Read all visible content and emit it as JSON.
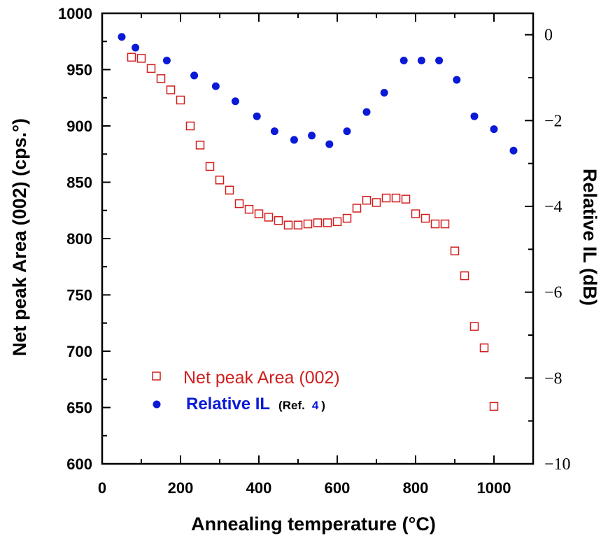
{
  "chart_data": {
    "type": "scatter",
    "xlabel": "Annealing temperature (°C)",
    "ylabel_left": "Net peak Area (002) (cps.°)",
    "ylabel_right": "Relative IL (dB)",
    "xlim": [
      0,
      1100
    ],
    "ylim_left": [
      600,
      1000
    ],
    "ylim_right": [
      -10,
      0.5
    ],
    "x_ticks": [
      "0",
      "200",
      "400",
      "600",
      "800",
      "1000"
    ],
    "y_left_ticks": [
      "600",
      "650",
      "700",
      "750",
      "800",
      "850",
      "900",
      "950",
      "1000"
    ],
    "y_right_ticks": [
      "−10",
      "−8",
      "−6",
      "−4",
      "−2",
      "0"
    ],
    "series": [
      {
        "name": "Net peak Area (002)",
        "axis": "left",
        "marker": "open-square",
        "color": "#d11f1f",
        "x": [
          75,
          100,
          125,
          150,
          175,
          200,
          225,
          250,
          275,
          300,
          325,
          350,
          375,
          400,
          425,
          450,
          475,
          500,
          525,
          550,
          575,
          600,
          625,
          650,
          675,
          700,
          725,
          750,
          775,
          800,
          825,
          850,
          875,
          900,
          925,
          950,
          975,
          1000
        ],
        "values": [
          961,
          960,
          951,
          942,
          932,
          923,
          900,
          883,
          864,
          852,
          843,
          831,
          826,
          822,
          819,
          816,
          812,
          812,
          813,
          814,
          814,
          815,
          818,
          827,
          834,
          832,
          836,
          836,
          835,
          822,
          818,
          813,
          813,
          789,
          767,
          722,
          703,
          651
        ]
      },
      {
        "name": "Relative IL",
        "axis": "right",
        "marker": "filled-circle",
        "color": "#0a1ad6",
        "x": [
          50,
          85,
          165,
          235,
          290,
          340,
          395,
          440,
          490,
          535,
          580,
          625,
          675,
          720,
          770,
          815,
          860,
          905,
          950,
          1000,
          1050
        ],
        "values": [
          -0.05,
          -0.3,
          -0.6,
          -0.95,
          -1.2,
          -1.55,
          -1.9,
          -2.25,
          -2.45,
          -2.35,
          -2.55,
          -2.25,
          -1.8,
          -1.35,
          -0.6,
          -0.6,
          -0.6,
          -1.05,
          -1.9,
          -2.2,
          -2.7
        ]
      }
    ],
    "legend": {
      "placement": "bottom-left",
      "net_label": "Net peak Area (002)",
      "il_label": "Relative IL",
      "ref_prefix": "(Ref.",
      "ref_number": "4",
      "ref_suffix": ")"
    },
    "grid": false
  },
  "colors": {
    "net_series": "#d11f1f",
    "il_series": "#0a1ad6",
    "axis": "#000000"
  }
}
